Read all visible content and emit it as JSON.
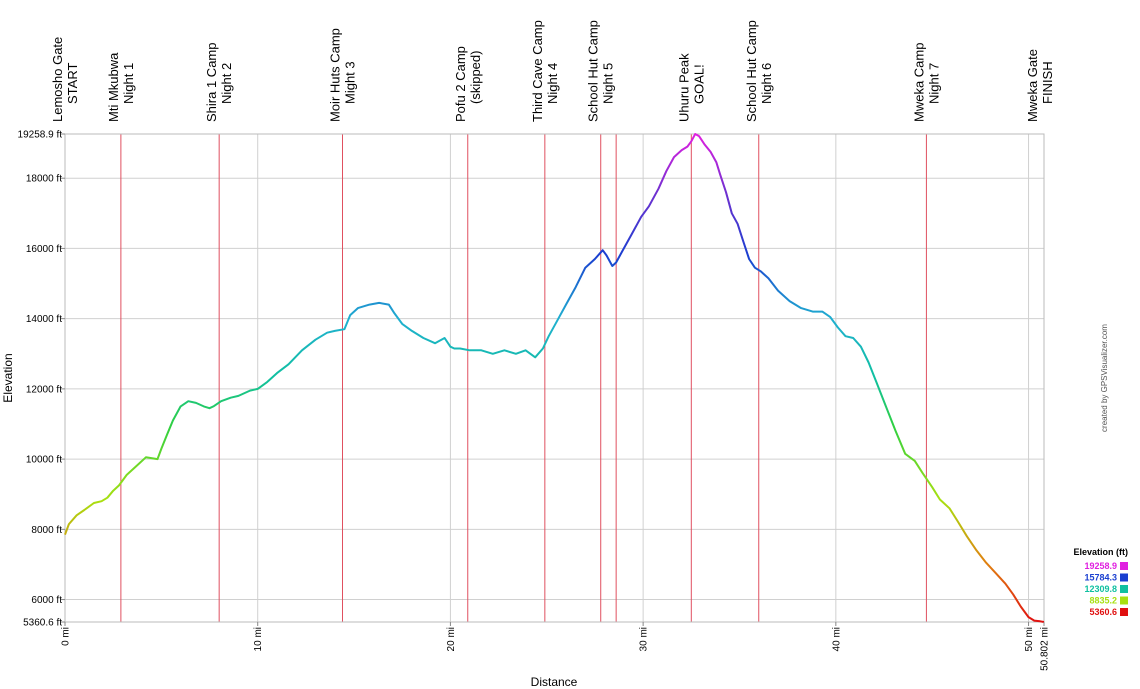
{
  "chart_data": {
    "type": "line",
    "title": "",
    "xlabel": "Distance",
    "ylabel": "Elevation",
    "x_unit": "mi",
    "y_unit": "ft",
    "xlim": [
      0,
      50.802
    ],
    "ylim": [
      5360.6,
      19258.9
    ],
    "x_tick_values": [
      0,
      10,
      20,
      30,
      40,
      50,
      50.802
    ],
    "x_tick_labels": [
      "0 mi",
      "10 mi",
      "20 mi",
      "30 mi",
      "40 mi",
      "50 mi",
      "50.802 mi"
    ],
    "y_tick_values": [
      5360.6,
      6000,
      8000,
      10000,
      12000,
      14000,
      16000,
      18000,
      19258.9
    ],
    "y_tick_labels": [
      "5360.6 ft",
      "6000 ft",
      "8000 ft",
      "10000 ft",
      "12000 ft",
      "14000 ft",
      "16000 ft",
      "18000 ft",
      "19258.9 ft"
    ],
    "grid": true,
    "series": [
      {
        "name": "Elevation (ft)",
        "x": [
          0,
          0.2,
          0.6,
          1.0,
          1.5,
          1.9,
          2.2,
          2.5,
          2.8,
          3.2,
          3.7,
          4.2,
          4.8,
          5.0,
          5.3,
          5.6,
          6.0,
          6.4,
          6.8,
          7.2,
          7.5,
          7.7,
          8.1,
          8.6,
          9.0,
          9.6,
          10.0,
          10.5,
          11.0,
          11.6,
          12.3,
          13.0,
          13.6,
          14.0,
          14.5,
          14.8,
          15.2,
          15.8,
          16.3,
          16.8,
          17.1,
          17.5,
          18.0,
          18.6,
          19.2,
          19.7,
          20.0,
          20.2,
          20.5,
          21.0,
          21.6,
          22.2,
          22.8,
          23.4,
          23.9,
          24.4,
          24.8,
          25.1,
          25.5,
          26.0,
          26.5,
          27.0,
          27.5,
          27.9,
          28.1,
          28.4,
          28.6,
          28.9,
          29.4,
          29.9,
          30.3,
          30.8,
          31.2,
          31.6,
          32.0,
          32.3,
          32.5,
          32.7,
          32.9,
          33.2,
          33.5,
          33.8,
          34.0,
          34.3,
          34.6,
          34.9,
          35.2,
          35.5,
          35.8,
          36.1,
          36.5,
          37.0,
          37.6,
          38.2,
          38.8,
          39.3,
          39.7,
          40.1,
          40.5,
          40.9,
          41.3,
          41.7,
          42.1,
          42.6,
          43.1,
          43.6,
          44.1,
          44.5,
          45.0,
          45.4,
          45.9,
          46.3,
          46.8,
          47.3,
          47.8,
          48.3,
          48.8,
          49.2,
          49.6,
          50.0,
          50.3,
          50.6,
          50.802
        ],
        "y": [
          7850,
          8150,
          8400,
          8550,
          8750,
          8800,
          8900,
          9100,
          9250,
          9550,
          9800,
          10050,
          10000,
          10300,
          10700,
          11100,
          11500,
          11650,
          11600,
          11500,
          11450,
          11500,
          11650,
          11750,
          11800,
          11950,
          12000,
          12200,
          12450,
          12700,
          13100,
          13400,
          13600,
          13650,
          13700,
          14100,
          14300,
          14400,
          14450,
          14400,
          14150,
          13850,
          13650,
          13450,
          13300,
          13450,
          13200,
          13150,
          13150,
          13100,
          13100,
          13000,
          13100,
          13000,
          13100,
          12900,
          13150,
          13500,
          13900,
          14400,
          14900,
          15450,
          15700,
          15950,
          15800,
          15500,
          15600,
          15900,
          16400,
          16900,
          17200,
          17700,
          18200,
          18600,
          18800,
          18900,
          19050,
          19258.9,
          19200,
          18950,
          18750,
          18450,
          18100,
          17600,
          17000,
          16700,
          16200,
          15700,
          15450,
          15350,
          15150,
          14800,
          14500,
          14300,
          14200,
          14200,
          14050,
          13750,
          13500,
          13450,
          13200,
          12750,
          12200,
          11500,
          10800,
          10150,
          9950,
          9600,
          9200,
          8850,
          8600,
          8250,
          7800,
          7400,
          7050,
          6750,
          6450,
          6150,
          5800,
          5500,
          5400,
          5380,
          5360.6
        ]
      }
    ],
    "waypoints": [
      {
        "mile": 0,
        "name": "Lemosho Gate",
        "sub": "START"
      },
      {
        "mile": 2.9,
        "name": "Mti Mkubwa",
        "sub": "Night 1"
      },
      {
        "mile": 8.0,
        "name": "Shira 1 Camp",
        "sub": "Night 2"
      },
      {
        "mile": 14.4,
        "name": "Moir Huts Camp",
        "sub": "Might 3"
      },
      {
        "mile": 20.9,
        "name": "Pofu 2 Camp",
        "sub": "(skipped)"
      },
      {
        "mile": 24.9,
        "name": "Third Cave Camp",
        "sub": "Night 4"
      },
      {
        "mile": 27.8,
        "name": "School Hut Camp",
        "sub": "Night 5"
      },
      {
        "mile": 32.5,
        "name": "Uhuru Peak",
        "sub": "GOAL!"
      },
      {
        "mile": 36.0,
        "name": "School Hut Camp",
        "sub": "Night 6"
      },
      {
        "mile": 44.7,
        "name": "Mweka Camp",
        "sub": "Night 7"
      },
      {
        "mile": 50.6,
        "name": "Mweka Gate",
        "sub": "FINISH"
      }
    ],
    "waypoint_lines_at": [
      2.9,
      8.0,
      14.4,
      20.9,
      24.9,
      27.8,
      28.6,
      32.5,
      36.0,
      44.7
    ],
    "legend": {
      "title": "Elevation (ft)",
      "placement": "right",
      "entries": [
        {
          "label": "19258.9",
          "color": "#e020e0"
        },
        {
          "label": "15784.3",
          "color": "#1a3fd0"
        },
        {
          "label": "12309.8",
          "color": "#10c0a0"
        },
        {
          "label": "8835.2",
          "color": "#a8e010"
        },
        {
          "label": "5360.6",
          "color": "#e01010"
        }
      ]
    },
    "credit": "created by GPSVisualizer.com"
  }
}
